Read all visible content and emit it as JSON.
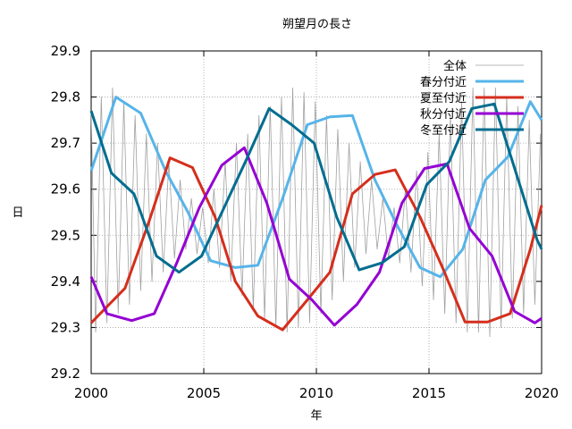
{
  "chart_data": {
    "type": "line",
    "title": "朔望月の長さ",
    "xlabel": "年",
    "ylabel": "日",
    "xlim": [
      2000,
      2020
    ],
    "ylim": [
      29.2,
      29.9
    ],
    "xticks": [
      2000,
      2005,
      2010,
      2015,
      2020
    ],
    "yticks": [
      29.2,
      29.3,
      29.4,
      29.5,
      29.6,
      29.7,
      29.8,
      29.9
    ],
    "xtick_labels": [
      "2000",
      "2005",
      "2010",
      "2015",
      "2020"
    ],
    "ytick_labels": [
      "29.2",
      "29.3",
      "29.4",
      "29.5",
      "29.6",
      "29.7",
      "29.8",
      "29.9"
    ],
    "grid": true,
    "legend_position": "top-right",
    "series": [
      {
        "name": "全体",
        "color": "#a0a0a0",
        "style": "thin",
        "x": [
          2000.0,
          2000.2,
          2000.45,
          2000.7,
          2000.95,
          2001.2,
          2001.45,
          2001.7,
          2001.95,
          2002.2,
          2002.45,
          2002.7,
          2002.95,
          2003.2,
          2003.45,
          2003.7,
          2003.95,
          2004.2,
          2004.45,
          2004.7,
          2004.95,
          2005.2,
          2005.45,
          2005.7,
          2005.95,
          2006.2,
          2006.45,
          2006.7,
          2006.95,
          2007.2,
          2007.45,
          2007.7,
          2007.95,
          2008.2,
          2008.45,
          2008.7,
          2008.95,
          2009.2,
          2009.45,
          2009.7,
          2009.95,
          2010.2,
          2010.45,
          2010.7,
          2010.95,
          2011.2,
          2011.45,
          2011.7,
          2011.95,
          2012.2,
          2012.45,
          2012.7,
          2012.95,
          2013.2,
          2013.45,
          2013.7,
          2013.95,
          2014.2,
          2014.45,
          2014.7,
          2014.95,
          2015.2,
          2015.45,
          2015.7,
          2015.95,
          2016.2,
          2016.45,
          2016.7,
          2016.95,
          2017.2,
          2017.45,
          2017.7,
          2017.95,
          2018.2,
          2018.45,
          2018.7,
          2018.95,
          2019.2,
          2019.45,
          2019.7,
          2019.95
        ],
        "values": [
          29.77,
          29.29,
          29.8,
          29.31,
          29.82,
          29.33,
          29.79,
          29.35,
          29.76,
          29.38,
          29.72,
          29.4,
          29.7,
          29.42,
          29.66,
          29.45,
          29.62,
          29.47,
          29.58,
          29.46,
          29.56,
          29.44,
          29.6,
          29.43,
          29.66,
          29.4,
          29.7,
          29.37,
          29.72,
          29.34,
          29.76,
          29.32,
          29.78,
          29.3,
          29.8,
          29.29,
          29.82,
          29.3,
          29.81,
          29.31,
          29.79,
          29.33,
          29.76,
          29.36,
          29.73,
          29.4,
          29.7,
          29.43,
          29.66,
          29.46,
          29.62,
          29.47,
          29.58,
          29.45,
          29.56,
          29.44,
          29.6,
          29.42,
          29.64,
          29.39,
          29.68,
          29.36,
          29.72,
          29.33,
          29.76,
          29.31,
          29.79,
          29.29,
          29.82,
          29.29,
          29.82,
          29.28,
          29.82,
          29.3,
          29.8,
          29.32,
          29.78,
          29.33,
          29.75,
          29.35,
          29.72
        ]
      },
      {
        "name": "春分付近",
        "color": "#56b4e9",
        "x": [
          2000,
          2001.1,
          2002.2,
          2003.3,
          2004.3,
          2005.3,
          2006.4,
          2007.4,
          2008.5,
          2009.6,
          2010.6,
          2011.6,
          2012.6,
          2013.6,
          2014.6,
          2015.5,
          2016.5,
          2017.5,
          2018.5,
          2019.5,
          2020
        ],
        "values": [
          29.64,
          29.8,
          29.765,
          29.64,
          29.55,
          29.445,
          29.43,
          29.435,
          29.58,
          29.74,
          29.757,
          29.76,
          29.62,
          29.52,
          29.43,
          29.41,
          29.47,
          29.62,
          29.67,
          29.79,
          29.75
        ]
      },
      {
        "name": "夏至付近",
        "color": "#d52e1c",
        "x": [
          2000,
          2001.5,
          2002.5,
          2003.5,
          2004.5,
          2005.5,
          2006.4,
          2007.4,
          2008.5,
          2009.6,
          2010.6,
          2011.6,
          2012.6,
          2013.5,
          2014.6,
          2015.6,
          2016.6,
          2017.6,
          2018.6,
          2019.5,
          2020
        ],
        "values": [
          29.31,
          29.385,
          29.52,
          29.668,
          29.647,
          29.54,
          29.4,
          29.325,
          29.295,
          29.36,
          29.42,
          29.59,
          29.632,
          29.642,
          29.54,
          29.43,
          29.312,
          29.312,
          29.33,
          29.47,
          29.565
        ]
      },
      {
        "name": "秋分付近",
        "color": "#9400d3",
        "x": [
          2000,
          2000.7,
          2001.8,
          2002.8,
          2003.8,
          2004.8,
          2005.8,
          2006.8,
          2007.8,
          2008.8,
          2009.8,
          2010.8,
          2011.8,
          2012.8,
          2013.8,
          2014.8,
          2015.8,
          2016.8,
          2017.8,
          2018.8,
          2019.7,
          2020
        ],
        "values": [
          29.41,
          29.33,
          29.315,
          29.33,
          29.44,
          29.56,
          29.652,
          29.69,
          29.57,
          29.405,
          29.36,
          29.305,
          29.35,
          29.42,
          29.57,
          29.645,
          29.655,
          29.515,
          29.455,
          29.335,
          29.31,
          29.32
        ]
      },
      {
        "name": "冬至付近",
        "color": "#006d8f",
        "x": [
          2000,
          2000.9,
          2001.9,
          2002.9,
          2003.9,
          2004.9,
          2005.9,
          2006.9,
          2007.9,
          2008.9,
          2009.9,
          2010.9,
          2011.9,
          2012.9,
          2013.9,
          2014.9,
          2015.9,
          2016.9,
          2017.9,
          2018.9,
          2019.8,
          2020
        ],
        "values": [
          29.77,
          29.635,
          29.59,
          29.455,
          29.42,
          29.455,
          29.56,
          29.665,
          29.775,
          29.74,
          29.7,
          29.54,
          29.425,
          29.44,
          29.475,
          29.61,
          29.66,
          29.775,
          29.785,
          29.63,
          29.49,
          29.47
        ]
      }
    ]
  }
}
